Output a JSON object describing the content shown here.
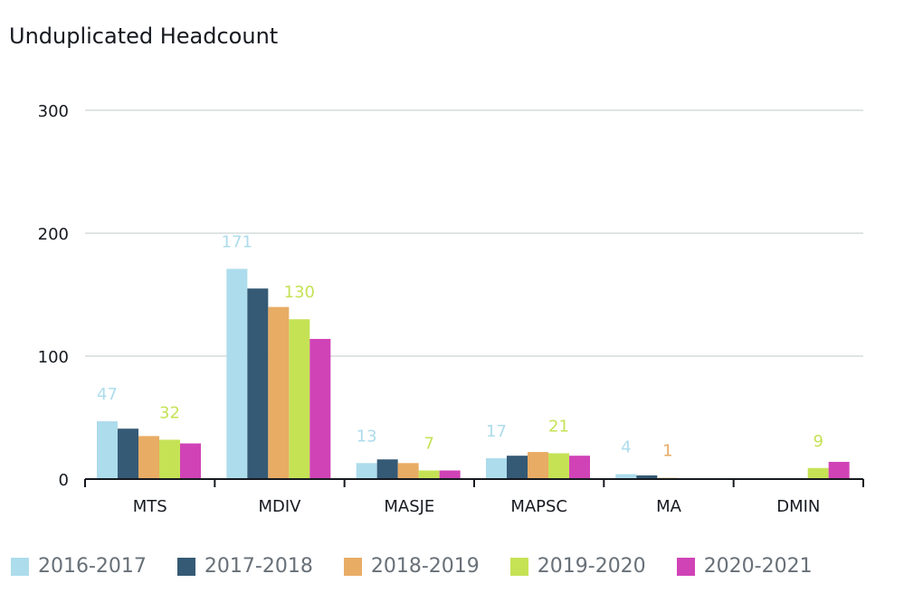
{
  "chart_data": {
    "type": "bar",
    "title": "Unduplicated Headcount",
    "xlabel": "",
    "ylabel": "",
    "ylim": [
      0,
      300
    ],
    "yticks": [
      0,
      100,
      200,
      300
    ],
    "categories": [
      "MTS",
      "MDIV",
      "MASJE",
      "MAPSC",
      "MA",
      "DMIN"
    ],
    "series": [
      {
        "name": "2016-2017",
        "color": "#addcec",
        "values": [
          47,
          171,
          13,
          17,
          4,
          0
        ]
      },
      {
        "name": "2017-2018",
        "color": "#355a75",
        "values": [
          41,
          155,
          16,
          19,
          3,
          0
        ]
      },
      {
        "name": "2018-2019",
        "color": "#e8ac65",
        "values": [
          35,
          140,
          13,
          22,
          1,
          0
        ]
      },
      {
        "name": "2019-2020",
        "color": "#c5e255",
        "values": [
          32,
          130,
          7,
          21,
          0,
          9
        ]
      },
      {
        "name": "2020-2021",
        "color": "#d043b6",
        "values": [
          29,
          114,
          7,
          19,
          0,
          14
        ]
      }
    ],
    "data_labels": [
      {
        "text": "47",
        "category": 0,
        "series": 0
      },
      {
        "text": "32",
        "category": 0,
        "series": 3
      },
      {
        "text": "171",
        "category": 1,
        "series": 0
      },
      {
        "text": "130",
        "category": 1,
        "series": 3
      },
      {
        "text": "13",
        "category": 2,
        "series": 0
      },
      {
        "text": "7",
        "category": 2,
        "series": 3
      },
      {
        "text": "17",
        "category": 3,
        "series": 0
      },
      {
        "text": "21",
        "category": 3,
        "series": 3
      },
      {
        "text": "4",
        "category": 4,
        "series": 0
      },
      {
        "text": "1",
        "category": 4,
        "series": 2
      },
      {
        "text": "9",
        "category": 5,
        "series": 3
      }
    ],
    "grid": true,
    "legend_position": "bottom-left"
  }
}
